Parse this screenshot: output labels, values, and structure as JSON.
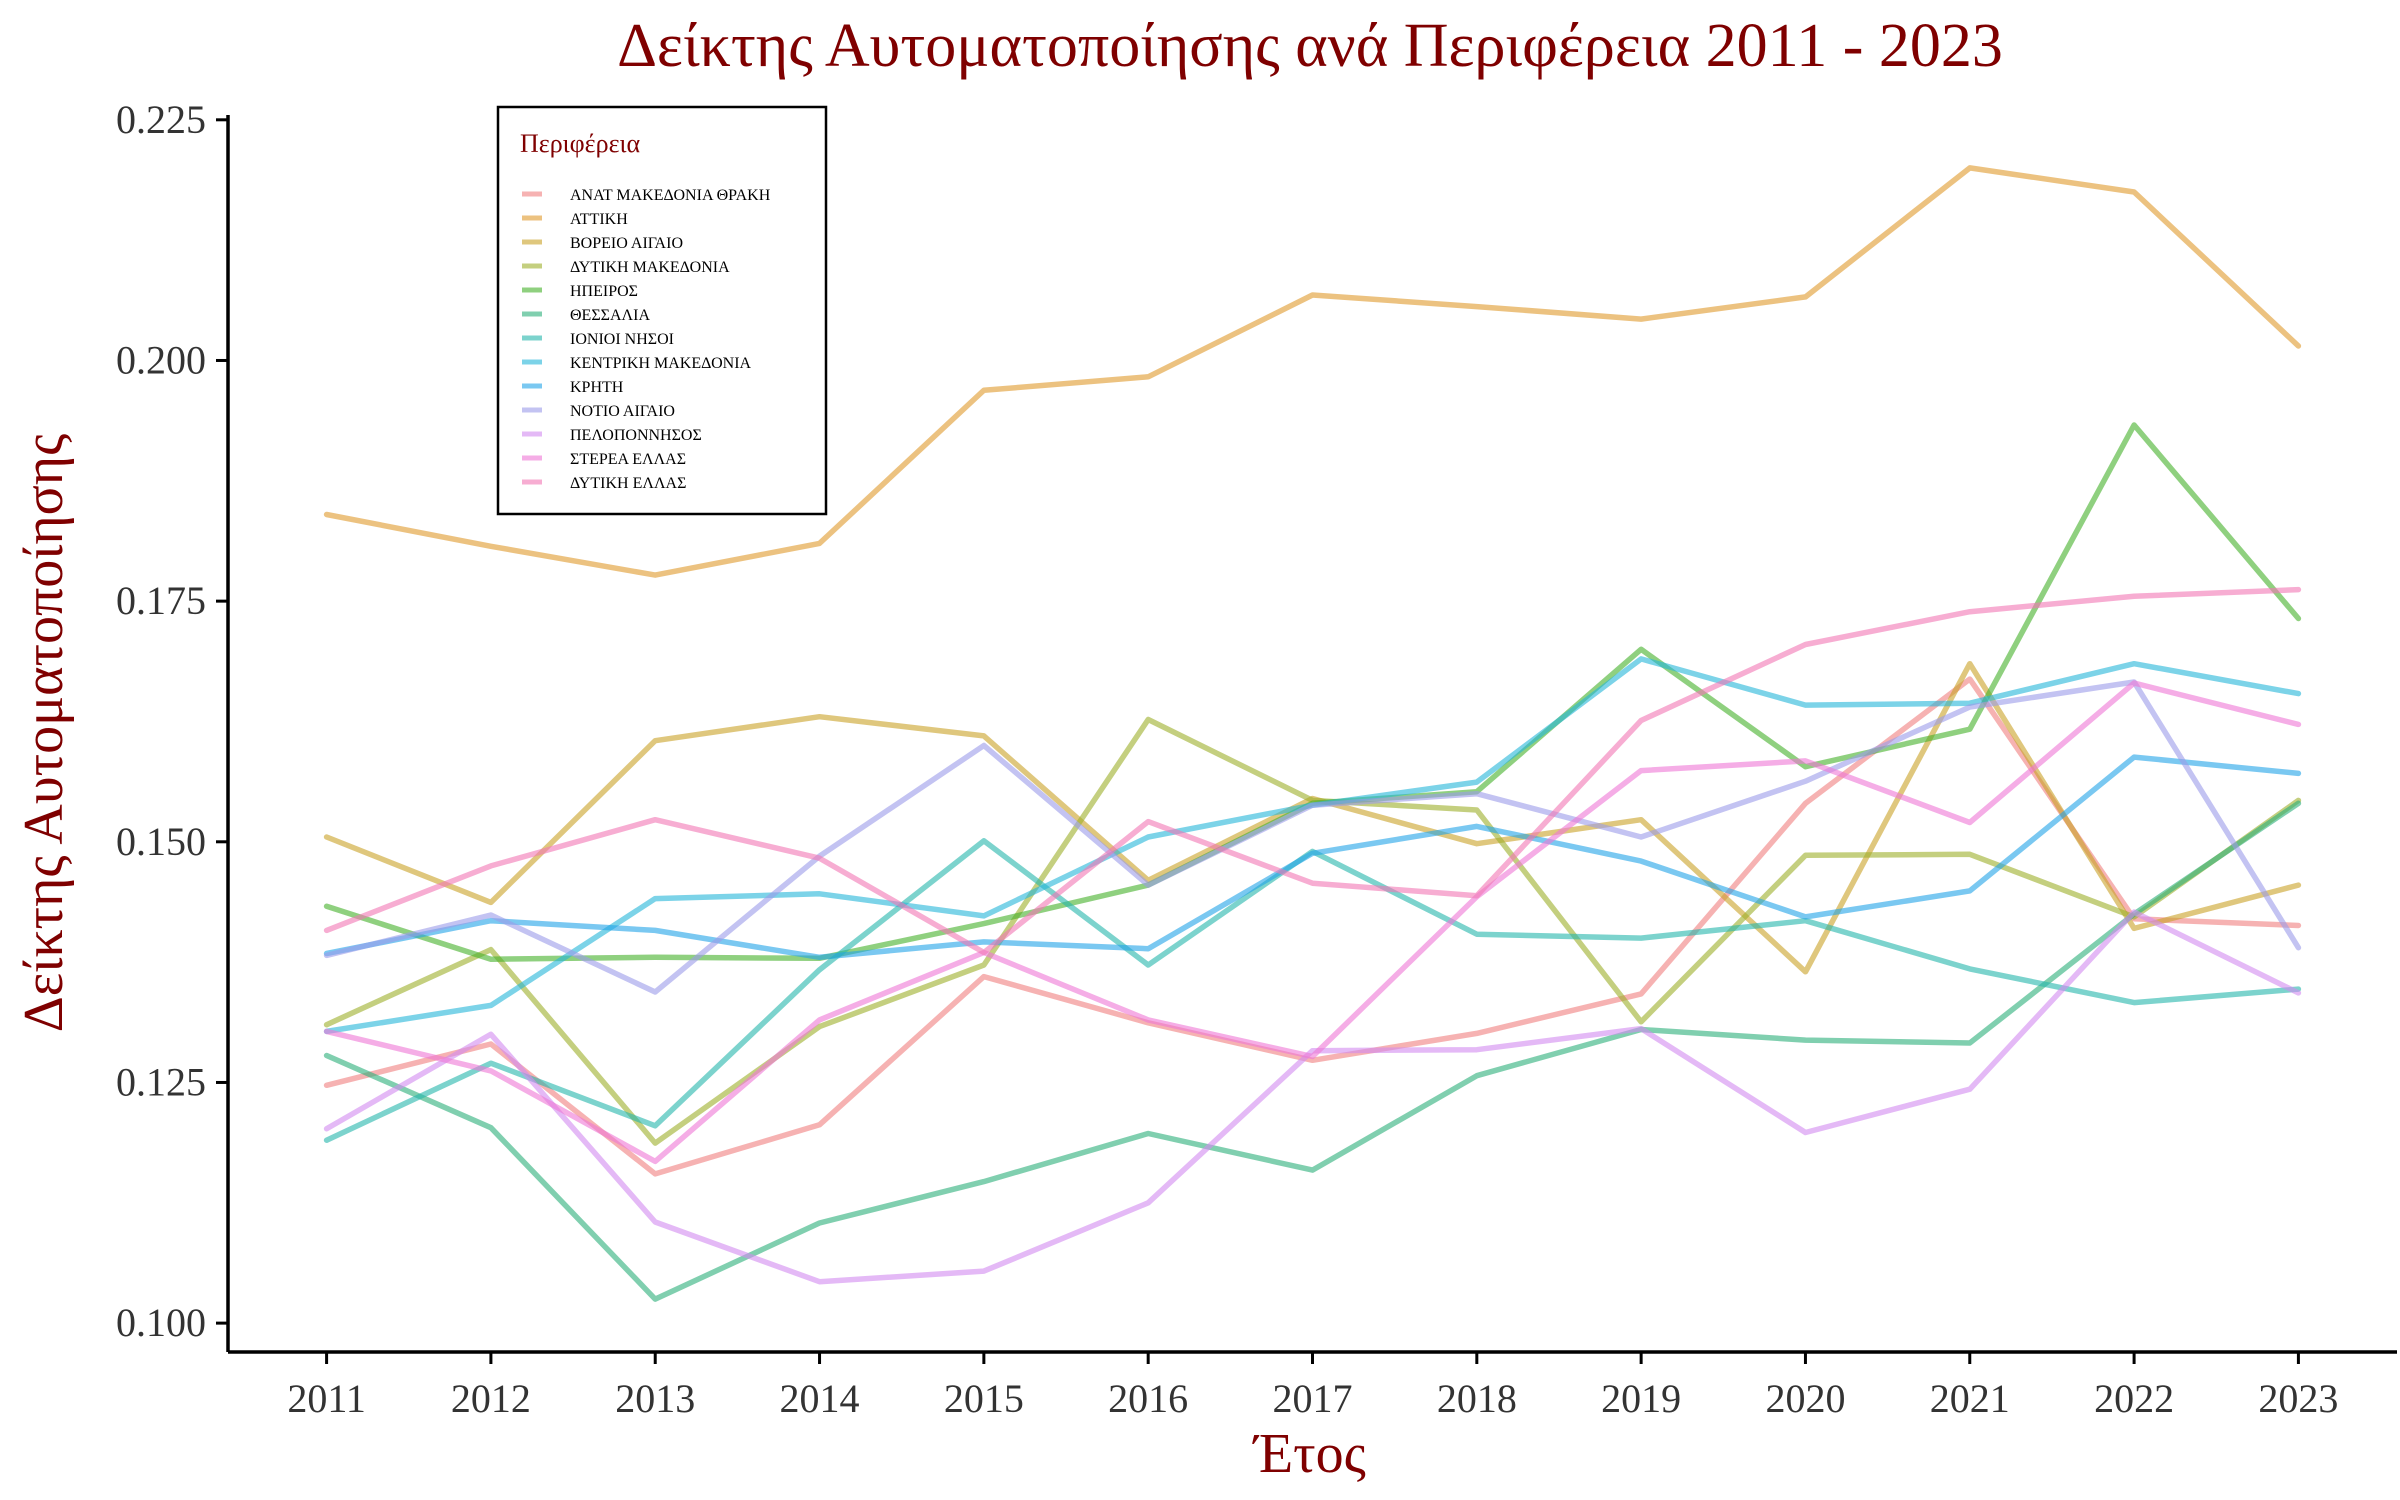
{
  "chart_data": {
    "type": "line",
    "title": "Δείκτης Αυτοματοποίησης ανά Περιφέρεια 2011 - 2023",
    "xlabel": "Έτος",
    "ylabel": "Δείκτης Αυτοματοποίησης",
    "x": [
      2011,
      2012,
      2013,
      2014,
      2015,
      2016,
      2017,
      2018,
      2019,
      2020,
      2021,
      2022,
      2023
    ],
    "xlim": [
      2010.4,
      2023.6
    ],
    "ylim": [
      0.097,
      0.2255
    ],
    "yticks": [
      0.1,
      0.125,
      0.15,
      0.175,
      0.2,
      0.225
    ],
    "ytick_labels": [
      "0.100",
      "0.125",
      "0.150",
      "0.175",
      "0.200",
      "0.225"
    ],
    "grid": false,
    "legend": {
      "title": "Περιφέρεια",
      "position": "top-left"
    },
    "series": [
      {
        "name": "ΑΝΑΤ ΜΑΚΕΔΟΝΙΑ ΘΡΑΚΗ",
        "color": "#F07F7F",
        "values": [
          0.1247,
          0.129,
          0.1155,
          0.1206,
          0.136,
          0.1312,
          0.1273,
          0.1301,
          0.1342,
          0.154,
          0.1669,
          0.142,
          0.1413
        ]
      },
      {
        "name": "ΑΤΤΙΚΗ",
        "color": "#E09A2B",
        "values": [
          0.184,
          0.1807,
          0.1777,
          0.181,
          0.1969,
          0.1983,
          0.2068,
          0.2056,
          0.2043,
          0.2066,
          0.22,
          0.2175,
          0.2015
        ]
      },
      {
        "name": "ΒΟΡΕΙΟ ΑΙΓΑΙΟ",
        "color": "#C9A227",
        "values": [
          0.1505,
          0.1437,
          0.1605,
          0.163,
          0.161,
          0.146,
          0.1545,
          0.1498,
          0.1523,
          0.1365,
          0.1685,
          0.141,
          0.1455
        ]
      },
      {
        "name": "ΔΥΤΙΚΗ ΜΑΚΕΔΟΝΙΑ",
        "color": "#9DAF2A",
        "values": [
          0.131,
          0.1388,
          0.1187,
          0.1308,
          0.1372,
          0.1627,
          0.1543,
          0.1533,
          0.1313,
          0.1486,
          0.1487,
          0.1422,
          0.1543
        ]
      },
      {
        "name": "ΗΠΕΙΡΟΣ",
        "color": "#45B02A",
        "values": [
          0.1433,
          0.1378,
          0.138,
          0.1379,
          0.1415,
          0.1455,
          0.154,
          0.1552,
          0.17,
          0.1578,
          0.1617,
          0.1933,
          0.1732
        ]
      },
      {
        "name": "ΘΕΣΣΑΛΙΑ",
        "color": "#2BAF7A",
        "values": [
          0.1278,
          0.1203,
          0.1025,
          0.1104,
          0.1147,
          0.1197,
          0.1159,
          0.1257,
          0.1305,
          0.1294,
          0.1291,
          0.1425,
          0.154
        ]
      },
      {
        "name": "ΙΟΝΙΟΙ ΝΗΣΟΙ",
        "color": "#25B5AC",
        "values": [
          0.119,
          0.127,
          0.1205,
          0.1367,
          0.1501,
          0.1372,
          0.149,
          0.1404,
          0.14,
          0.1418,
          0.1368,
          0.1333,
          0.1347
        ]
      },
      {
        "name": "ΚΕΝΤΡΙΚΗ ΜΑΚΕΔΟΝΙΑ",
        "color": "#25B5D8",
        "values": [
          0.1303,
          0.133,
          0.1441,
          0.1446,
          0.1423,
          0.1505,
          0.1538,
          0.1562,
          0.169,
          0.1642,
          0.1644,
          0.1685,
          0.1654
        ]
      },
      {
        "name": "ΚΡΗΤΗ",
        "color": "#22A3E8",
        "values": [
          0.1384,
          0.1418,
          0.1408,
          0.138,
          0.1396,
          0.1389,
          0.1488,
          0.1516,
          0.148,
          0.1422,
          0.1449,
          0.1588,
          0.1571
        ]
      },
      {
        "name": "ΝΟΤΙΟ ΑΙΓΑΙΟ",
        "color": "#9B9BEA",
        "values": [
          0.1382,
          0.1424,
          0.1344,
          0.1485,
          0.16,
          0.1455,
          0.1538,
          0.155,
          0.1505,
          0.1563,
          0.164,
          0.1666,
          0.139
        ]
      },
      {
        "name": "ΠΕΛΟΠΟΝΝΗΣΟΣ",
        "color": "#D28BF0",
        "values": [
          0.1202,
          0.13,
          0.1105,
          0.1043,
          0.1054,
          0.1125,
          0.1283,
          0.1284,
          0.1306,
          0.1198,
          0.1243,
          0.1427,
          0.1343
        ]
      },
      {
        "name": "ΣΤΕΡΕΑ ΕΛΛΑΣ",
        "color": "#EE77D6",
        "values": [
          0.1303,
          0.1262,
          0.1168,
          0.1315,
          0.1385,
          0.1315,
          0.1277,
          0.1443,
          0.1574,
          0.1584,
          0.152,
          0.1665,
          0.1622
        ]
      },
      {
        "name": "ΔΥΤΙΚΗ ΕΛΛΑΣ",
        "color": "#F277B4",
        "values": [
          0.1408,
          0.1475,
          0.1523,
          0.1483,
          0.1385,
          0.1521,
          0.1457,
          0.1444,
          0.1626,
          0.1705,
          0.1739,
          0.1755,
          0.1762
        ]
      }
    ]
  }
}
